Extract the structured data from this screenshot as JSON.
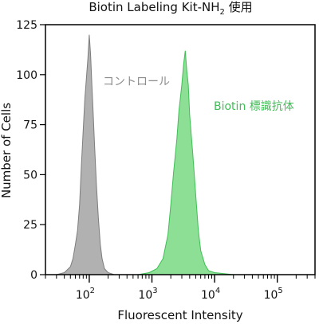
{
  "chart_data": {
    "type": "area",
    "title": "Biotin Labeling Kit-NH",
    "title_subscript": "2",
    "title_suffix": " 使用",
    "xlabel": "Fluorescent Intensity",
    "ylabel": "Number of Cells",
    "x_scale": "log",
    "xlim": [
      20,
      400000
    ],
    "ylim": [
      0,
      125
    ],
    "x_ticks": [
      {
        "base": "10",
        "exp": "2",
        "value": 100
      },
      {
        "base": "10",
        "exp": "3",
        "value": 1000
      },
      {
        "base": "10",
        "exp": "4",
        "value": 10000
      },
      {
        "base": "10",
        "exp": "5",
        "value": 100000
      }
    ],
    "y_ticks": [
      "0",
      "25",
      "50",
      "75",
      "100",
      "125"
    ],
    "grid": false,
    "series": [
      {
        "name": "コントロール",
        "color": "#a9a9a9",
        "stroke": "#7d7d7d",
        "points": [
          [
            30,
            0
          ],
          [
            40,
            1
          ],
          [
            50,
            4
          ],
          [
            55,
            8
          ],
          [
            60,
            15
          ],
          [
            65,
            22
          ],
          [
            70,
            35
          ],
          [
            75,
            55
          ],
          [
            80,
            72
          ],
          [
            85,
            88
          ],
          [
            90,
            98
          ],
          [
            95,
            108
          ],
          [
            100,
            120
          ],
          [
            105,
            110
          ],
          [
            110,
            95
          ],
          [
            115,
            82
          ],
          [
            120,
            68
          ],
          [
            130,
            45
          ],
          [
            140,
            28
          ],
          [
            150,
            15
          ],
          [
            160,
            8
          ],
          [
            175,
            3
          ],
          [
            200,
            1
          ],
          [
            250,
            0
          ]
        ]
      },
      {
        "name": "Biotin 標識抗体",
        "color": "#7fdc8a",
        "stroke": "#3fbf55",
        "points": [
          [
            600,
            0
          ],
          [
            900,
            1
          ],
          [
            1200,
            3
          ],
          [
            1500,
            8
          ],
          [
            1800,
            20
          ],
          [
            2000,
            35
          ],
          [
            2200,
            50
          ],
          [
            2500,
            68
          ],
          [
            2700,
            82
          ],
          [
            3000,
            95
          ],
          [
            3200,
            105
          ],
          [
            3400,
            112
          ],
          [
            3600,
            102
          ],
          [
            3800,
            95
          ],
          [
            4000,
            80
          ],
          [
            4500,
            60
          ],
          [
            5000,
            40
          ],
          [
            5500,
            22
          ],
          [
            6000,
            12
          ],
          [
            7000,
            5
          ],
          [
            8000,
            2
          ],
          [
            10000,
            1
          ],
          [
            20000,
            0
          ]
        ]
      }
    ],
    "annotations": [
      {
        "text": "コントロール",
        "series": 0
      },
      {
        "text": "Biotin 標識抗体",
        "series": 1
      }
    ]
  }
}
